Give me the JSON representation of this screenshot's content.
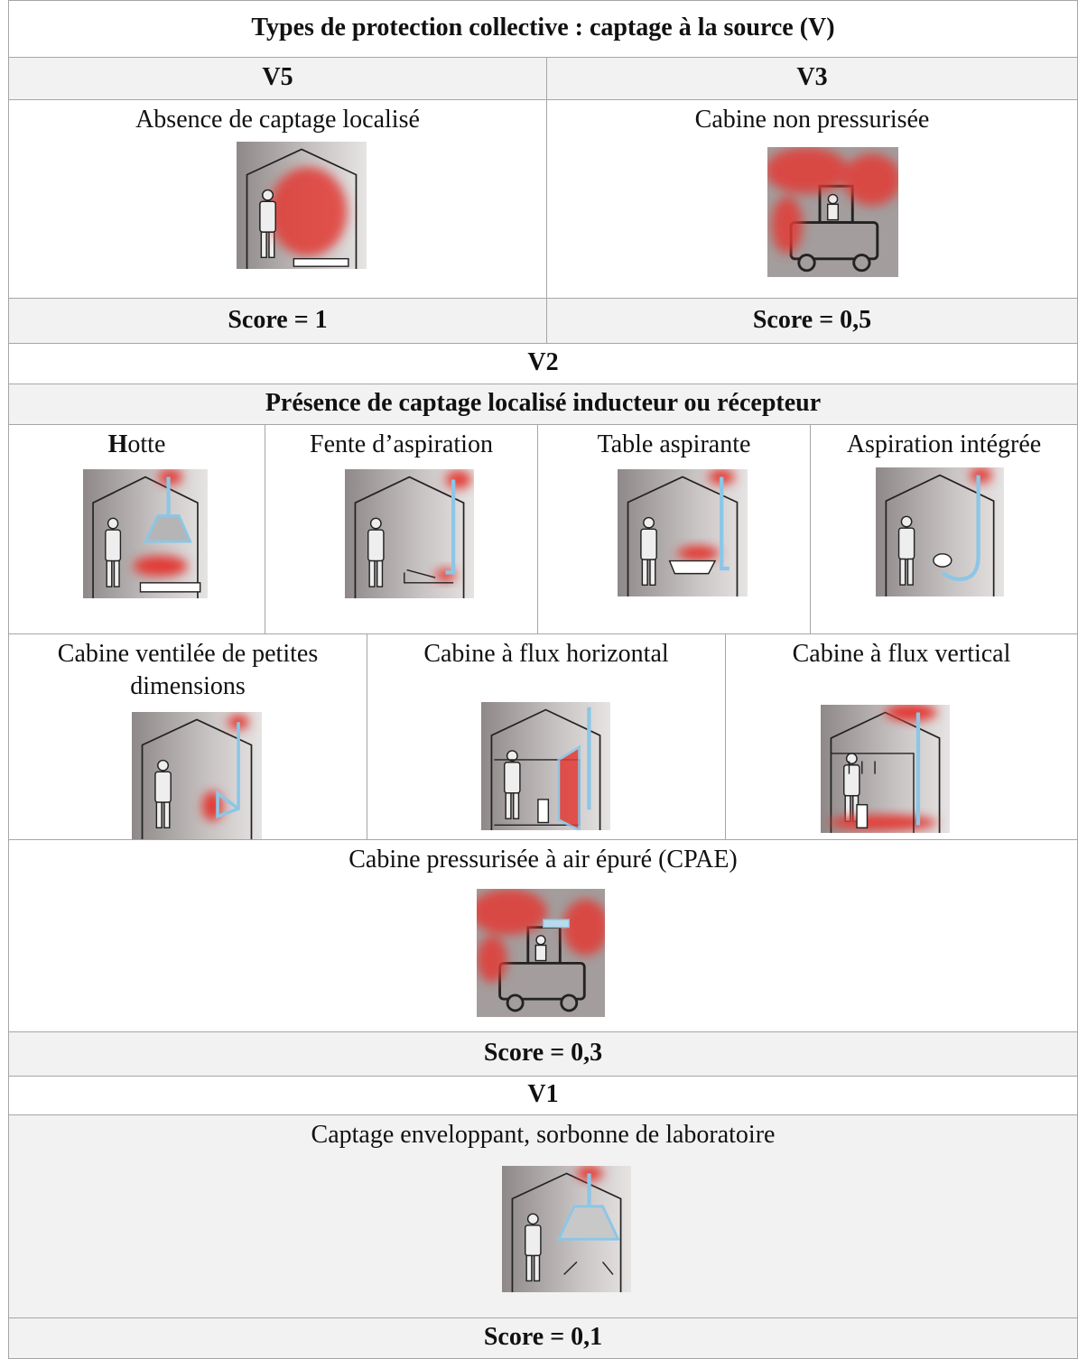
{
  "table": {
    "title": "Types de protection collective : captage à la source (V)",
    "v5": {
      "header": "V5",
      "label": "Absence de captage localisé",
      "score": "Score = 1"
    },
    "v3": {
      "header": "V3",
      "label": "Cabine non pressurisée",
      "score": "Score = 0,5"
    },
    "v2": {
      "header": "V2",
      "subtitle": "Présence de captage localisé inducteur ou récepteur",
      "items": [
        "Hotte",
        "Fente d’aspiration",
        "Table aspirante",
        "Aspiration intégrée",
        "Cabine ventilée de petites dimensions",
        "Cabine à flux horizontal",
        "Cabine à flux vertical",
        "Cabine pressurisée à air épuré (CPAE)"
      ],
      "score": "Score = 0,3"
    },
    "v1": {
      "header": "V1",
      "label": "Captage enveloppant, sorbonne de laboratoire",
      "score": "Score = 0,1"
    }
  }
}
